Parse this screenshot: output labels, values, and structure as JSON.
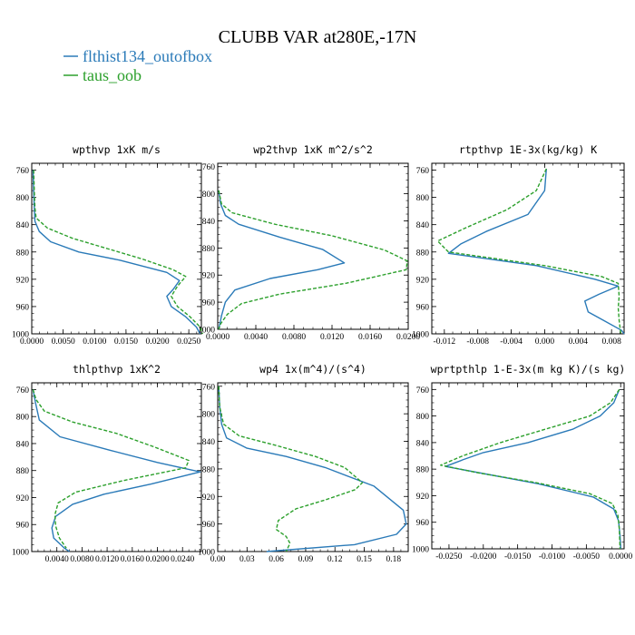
{
  "figure": {
    "title": "CLUBB VAR at280E,-17N",
    "legend": [
      {
        "name": "flthist134_outofbox",
        "color": "#2a7ab8",
        "dash": "solid"
      },
      {
        "name": "taus_oob",
        "color": "#2ca02c",
        "dash": "dashed"
      }
    ]
  },
  "chart_data": [
    {
      "type": "line",
      "title": "wpthvp  1xK m/s",
      "xlim": [
        0,
        0.027
      ],
      "ylim": [
        1000,
        750
      ],
      "xticks": [
        "0.0000",
        "0.0050",
        "0.0100",
        "0.0150",
        "0.0200",
        "0.0250"
      ],
      "xtick_values": [
        0,
        0.005,
        0.01,
        0.015,
        0.02,
        0.025
      ],
      "yticks": [
        760,
        800,
        840,
        880,
        920,
        960,
        1000
      ],
      "series": [
        {
          "name": "flthist134_outofbox",
          "points": [
            [
              0.0002,
              760
            ],
            [
              0.0003,
              790
            ],
            [
              0.0004,
              815
            ],
            [
              0.0005,
              835
            ],
            [
              0.0012,
              850
            ],
            [
              0.003,
              865
            ],
            [
              0.0075,
              880
            ],
            [
              0.014,
              892
            ],
            [
              0.0215,
              910
            ],
            [
              0.0235,
              922
            ],
            [
              0.0225,
              935
            ],
            [
              0.0215,
              945
            ],
            [
              0.0222,
              960
            ],
            [
              0.0245,
              975
            ],
            [
              0.0262,
              990
            ],
            [
              0.0268,
              1000
            ]
          ]
        },
        {
          "name": "taus_oob",
          "points": [
            [
              0.0003,
              760
            ],
            [
              0.0004,
              790
            ],
            [
              0.0005,
              815
            ],
            [
              0.0007,
              830
            ],
            [
              0.0025,
              845
            ],
            [
              0.0065,
              860
            ],
            [
              0.012,
              875
            ],
            [
              0.0175,
              890
            ],
            [
              0.0225,
              906
            ],
            [
              0.0245,
              916
            ],
            [
              0.0232,
              930
            ],
            [
              0.0222,
              945
            ],
            [
              0.0232,
              960
            ],
            [
              0.0252,
              975
            ],
            [
              0.0268,
              990
            ],
            [
              0.0272,
              1000
            ]
          ]
        }
      ]
    },
    {
      "type": "line",
      "title": "wp2thvp  1xK m^2/s^2",
      "xlim": [
        0,
        0.02
      ],
      "ylim": [
        1000,
        755
      ],
      "xticks": [
        "0.0000",
        "0.0040",
        "0.0080",
        "0.0120",
        "0.0160",
        "0.0200"
      ],
      "xtick_values": [
        0,
        0.004,
        0.008,
        0.012,
        0.016,
        0.02
      ],
      "yticks": [
        760,
        800,
        840,
        880,
        920,
        960,
        1000
      ],
      "series": [
        {
          "name": "flthist134_outofbox",
          "points": [
            [
              0.0001,
              795
            ],
            [
              0.0003,
              815
            ],
            [
              0.0008,
              832
            ],
            [
              0.0022,
              845
            ],
            [
              0.0065,
              864
            ],
            [
              0.011,
              882
            ],
            [
              0.0133,
              902
            ],
            [
              0.0105,
              912
            ],
            [
              0.0055,
              925
            ],
            [
              0.0018,
              942
            ],
            [
              0.0008,
              960
            ],
            [
              0.0004,
              980
            ],
            [
              0.0001,
              1000
            ]
          ]
        },
        {
          "name": "taus_oob",
          "points": [
            [
              0.0001,
              795
            ],
            [
              0.0004,
              815
            ],
            [
              0.0015,
              828
            ],
            [
              0.006,
              845
            ],
            [
              0.012,
              862
            ],
            [
              0.0175,
              883
            ],
            [
              0.0199,
              899
            ],
            [
              0.0198,
              912
            ],
            [
              0.0135,
              932
            ],
            [
              0.0065,
              948
            ],
            [
              0.0025,
              962
            ],
            [
              0.001,
              978
            ],
            [
              0.0003,
              992
            ],
            [
              0.0001,
              1000
            ]
          ]
        }
      ]
    },
    {
      "type": "line",
      "title": "rtpthvp  1E-3x(kg/kg) K",
      "xlim": [
        -0.0135,
        0.0095
      ],
      "ylim": [
        1000,
        750
      ],
      "xticks": [
        "-0.012",
        "-0.008",
        "-0.004",
        "0.000",
        "0.004",
        "0.008"
      ],
      "xtick_values": [
        -0.012,
        -0.008,
        -0.004,
        0,
        0.004,
        0.008
      ],
      "yticks": [
        760,
        800,
        840,
        880,
        920,
        960,
        1000
      ],
      "series": [
        {
          "name": "flthist134_outofbox",
          "points": [
            [
              0.0002,
              758
            ],
            [
              0.0,
              790
            ],
            [
              -0.002,
              825
            ],
            [
              -0.007,
              850
            ],
            [
              -0.01,
              868
            ],
            [
              -0.0115,
              882
            ],
            [
              -0.001,
              900
            ],
            [
              0.006,
              920
            ],
            [
              0.0088,
              930
            ],
            [
              0.0065,
              942
            ],
            [
              0.0048,
              952
            ],
            [
              0.0052,
              968
            ],
            [
              0.007,
              980
            ],
            [
              0.0092,
              995
            ],
            [
              0.0095,
              1000
            ]
          ]
        },
        {
          "name": "taus_oob",
          "points": [
            [
              0.0002,
              758
            ],
            [
              -0.001,
              790
            ],
            [
              -0.0045,
              818
            ],
            [
              -0.0095,
              845
            ],
            [
              -0.0128,
              864
            ],
            [
              -0.0115,
              880
            ],
            [
              0.0,
              900
            ],
            [
              0.0068,
              916
            ],
            [
              0.0088,
              926
            ],
            [
              0.0089,
              945
            ],
            [
              0.0088,
              962
            ],
            [
              0.0089,
              980
            ],
            [
              0.0091,
              1000
            ]
          ]
        }
      ]
    },
    {
      "type": "line",
      "title": "thlpthvp  1xK^2",
      "xlim": [
        0,
        0.027
      ],
      "ylim": [
        1000,
        750
      ],
      "xticks": [
        "0.0040",
        "0.0080",
        "0.0120",
        "0.0160",
        "0.0200",
        "0.0240"
      ],
      "xtick_values": [
        0.004,
        0.008,
        0.012,
        0.016,
        0.02,
        0.024
      ],
      "yticks": [
        760,
        800,
        840,
        880,
        920,
        960,
        1000
      ],
      "series": [
        {
          "name": "flthist134_outofbox",
          "points": [
            [
              0.0002,
              760
            ],
            [
              0.0006,
              780
            ],
            [
              0.0012,
              805
            ],
            [
              0.0045,
              830
            ],
            [
              0.0125,
              850
            ],
            [
              0.02,
              868
            ],
            [
              0.0268,
              882
            ],
            [
              0.019,
              900
            ],
            [
              0.0115,
              915
            ],
            [
              0.0065,
              930
            ],
            [
              0.0038,
              948
            ],
            [
              0.0032,
              965
            ],
            [
              0.0035,
              980
            ],
            [
              0.0052,
              995
            ],
            [
              0.006,
              1000
            ]
          ]
        },
        {
          "name": "taus_oob",
          "points": [
            [
              0.0002,
              760
            ],
            [
              0.0007,
              775
            ],
            [
              0.002,
              792
            ],
            [
              0.0065,
              808
            ],
            [
              0.0135,
              825
            ],
            [
              0.0195,
              845
            ],
            [
              0.025,
              865
            ],
            [
              0.0245,
              876
            ],
            [
              0.0145,
              895
            ],
            [
              0.007,
              912
            ],
            [
              0.0042,
              928
            ],
            [
              0.0037,
              945
            ],
            [
              0.0038,
              962
            ],
            [
              0.0044,
              980
            ],
            [
              0.0055,
              995
            ]
          ]
        }
      ]
    },
    {
      "type": "line",
      "title": "wp4  1x(m^4)/(s^4)",
      "xlim": [
        0,
        0.195
      ],
      "ylim": [
        1000,
        755
      ],
      "xticks": [
        "0.00",
        "0.03",
        "0.06",
        "0.09",
        "0.12",
        "0.15",
        "0.18"
      ],
      "xtick_values": [
        0,
        0.03,
        0.06,
        0.09,
        0.12,
        0.15,
        0.18
      ],
      "yticks": [
        760,
        800,
        840,
        880,
        920,
        960,
        1000
      ],
      "series": [
        {
          "name": "flthist134_outofbox",
          "points": [
            [
              0.001,
              760
            ],
            [
              0.002,
              790
            ],
            [
              0.004,
              815
            ],
            [
              0.009,
              835
            ],
            [
              0.03,
              850
            ],
            [
              0.07,
              862
            ],
            [
              0.11,
              878
            ],
            [
              0.16,
              905
            ],
            [
              0.19,
              940
            ],
            [
              0.193,
              960
            ],
            [
              0.183,
              975
            ],
            [
              0.14,
              990
            ],
            [
              0.05,
              1000
            ]
          ]
        },
        {
          "name": "taus_oob",
          "points": [
            [
              0.001,
              760
            ],
            [
              0.002,
              790
            ],
            [
              0.006,
              815
            ],
            [
              0.022,
              832
            ],
            [
              0.06,
              846
            ],
            [
              0.1,
              862
            ],
            [
              0.13,
              878
            ],
            [
              0.148,
              900
            ],
            [
              0.141,
              910
            ],
            [
              0.11,
              925
            ],
            [
              0.08,
              938
            ],
            [
              0.062,
              955
            ],
            [
              0.06,
              968
            ],
            [
              0.07,
              978
            ],
            [
              0.074,
              988
            ],
            [
              0.07,
              1000
            ]
          ]
        }
      ]
    },
    {
      "type": "line",
      "title": "wprtpthlp  1-E-3x(m kg K)/(s kg)",
      "xlim": [
        -0.0275,
        0.0005
      ],
      "ylim": [
        1000,
        750
      ],
      "xticks": [
        "-0.0250",
        "-0.0200",
        "-0.0150",
        "-0.0100",
        "-0.0050",
        "0.0000"
      ],
      "xtick_values": [
        -0.025,
        -0.02,
        -0.015,
        -0.01,
        -0.005,
        0
      ],
      "yticks": [
        760,
        800,
        840,
        880,
        920,
        960,
        1000
      ],
      "series": [
        {
          "name": "flthist134_outofbox",
          "points": [
            [
              -0.0002,
              760
            ],
            [
              -0.001,
              780
            ],
            [
              -0.003,
              800
            ],
            [
              -0.007,
              820
            ],
            [
              -0.0135,
              840
            ],
            [
              -0.02,
              855
            ],
            [
              -0.023,
              866
            ],
            [
              -0.0255,
              876
            ],
            [
              -0.012,
              902
            ],
            [
              -0.004,
              922
            ],
            [
              -0.001,
              940
            ],
            [
              -0.0003,
              958
            ],
            [
              -0.0001,
              980
            ],
            [
              0.0,
              1000
            ]
          ]
        },
        {
          "name": "taus_oob",
          "points": [
            [
              -0.0002,
              760
            ],
            [
              -0.0015,
              780
            ],
            [
              -0.0045,
              800
            ],
            [
              -0.011,
              820
            ],
            [
              -0.0175,
              840
            ],
            [
              -0.023,
              860
            ],
            [
              -0.0262,
              874
            ],
            [
              -0.0205,
              886
            ],
            [
              -0.0125,
              900
            ],
            [
              -0.0045,
              917
            ],
            [
              -0.0012,
              932
            ],
            [
              -0.0004,
              950
            ],
            [
              -0.0002,
              970
            ],
            [
              -0.0001,
              1000
            ]
          ]
        }
      ]
    }
  ]
}
